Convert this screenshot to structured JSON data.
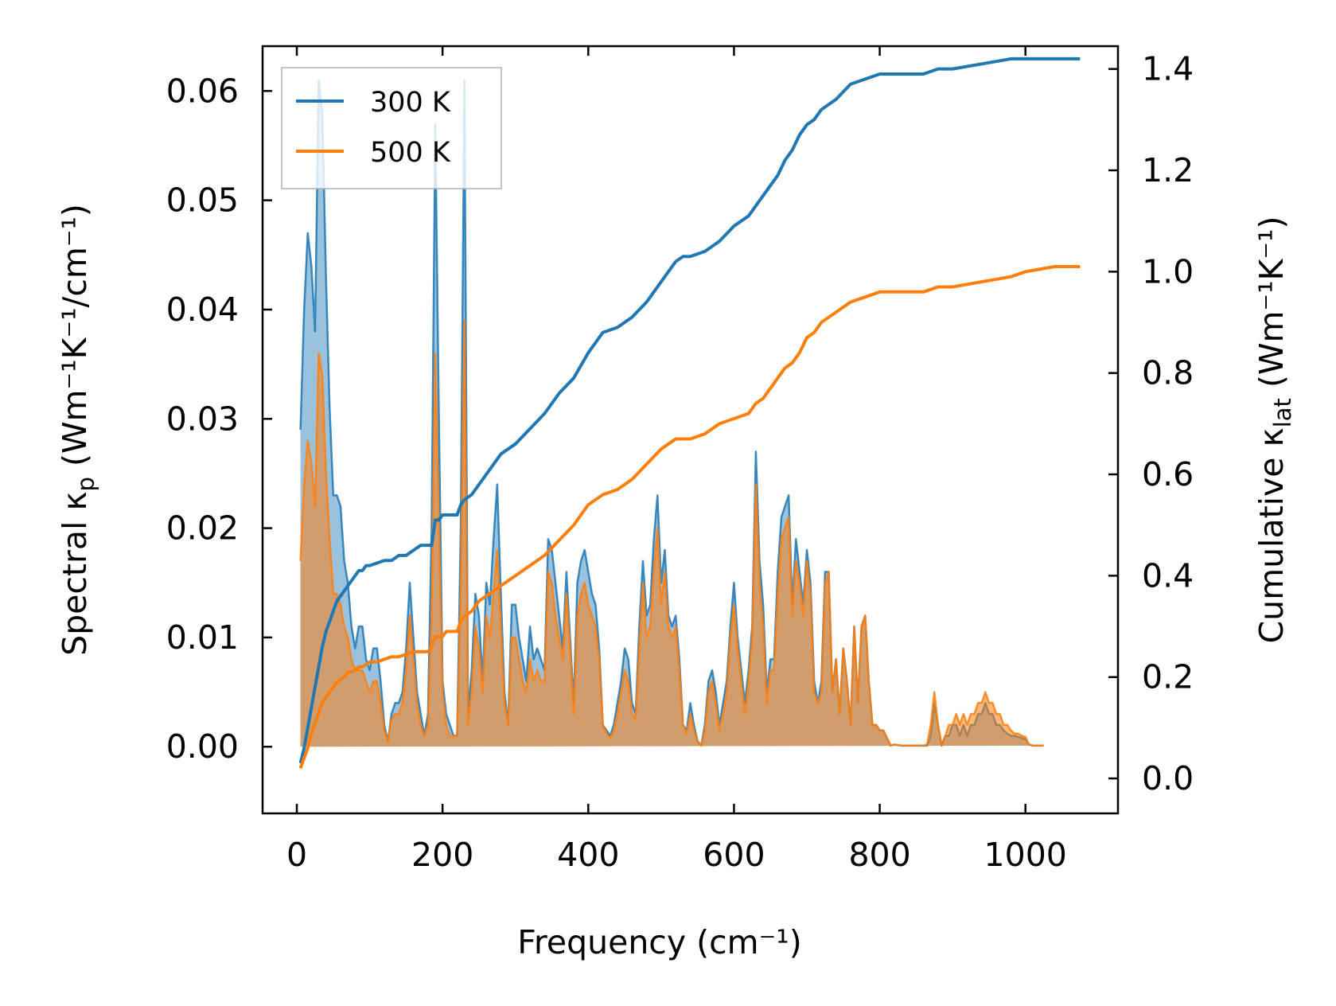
{
  "chart_data": {
    "type": "line",
    "xlabel": "Frequency (cm⁻¹)",
    "ylabel_left": {
      "base": "Spectral κ",
      "sub": "p",
      "units": " (Wm⁻¹K⁻¹/cm⁻¹)"
    },
    "ylabel_right": {
      "base": "Cumulative κ",
      "sub": "lat",
      "units": " (Wm⁻¹K⁻¹)"
    },
    "xlim": [
      -47,
      1127
    ],
    "ylim_left": [
      -0.0061,
      0.0641
    ],
    "ylim_right": [
      -0.069,
      1.445
    ],
    "x_ticks": [
      0,
      200,
      400,
      600,
      800,
      1000
    ],
    "x_tick_labels": [
      "0",
      "200",
      "400",
      "600",
      "800",
      "1000"
    ],
    "y_left_ticks": [
      0.0,
      0.01,
      0.02,
      0.03,
      0.04,
      0.05,
      0.06
    ],
    "y_left_tick_labels": [
      "0.00",
      "0.01",
      "0.02",
      "0.03",
      "0.04",
      "0.05",
      "0.06"
    ],
    "y_right_ticks": [
      0.0,
      0.2,
      0.4,
      0.6,
      0.8,
      1.0,
      1.2,
      1.4
    ],
    "y_right_tick_labels": [
      "0.0",
      "0.2",
      "0.4",
      "0.6",
      "0.8",
      "1.0",
      "1.2",
      "1.4"
    ],
    "legend": {
      "location": "upper-left",
      "entries": [
        "300 K",
        "500 K"
      ]
    },
    "colors": {
      "s300": "#1f77b4",
      "s500": "#ff7f0e"
    },
    "spectral_x": [
      5,
      10,
      15,
      20,
      25,
      30,
      35,
      40,
      45,
      50,
      55,
      60,
      65,
      70,
      75,
      80,
      85,
      90,
      95,
      100,
      105,
      110,
      115,
      120,
      125,
      130,
      135,
      140,
      145,
      150,
      155,
      160,
      165,
      170,
      175,
      180,
      185,
      190,
      195,
      200,
      205,
      210,
      215,
      220,
      225,
      230,
      235,
      240,
      245,
      250,
      255,
      260,
      265,
      270,
      275,
      280,
      285,
      290,
      295,
      300,
      305,
      310,
      315,
      320,
      325,
      330,
      335,
      340,
      345,
      350,
      355,
      360,
      365,
      370,
      375,
      380,
      385,
      390,
      395,
      400,
      405,
      410,
      415,
      420,
      425,
      430,
      435,
      440,
      445,
      450,
      455,
      460,
      465,
      470,
      475,
      480,
      485,
      490,
      495,
      500,
      505,
      510,
      515,
      520,
      525,
      530,
      535,
      540,
      545,
      550,
      555,
      560,
      565,
      570,
      575,
      580,
      585,
      590,
      595,
      600,
      605,
      610,
      615,
      620,
      625,
      630,
      635,
      640,
      645,
      650,
      655,
      660,
      665,
      670,
      675,
      680,
      685,
      690,
      695,
      700,
      705,
      710,
      715,
      720,
      725,
      730,
      735,
      740,
      745,
      750,
      755,
      760,
      765,
      770,
      775,
      780,
      785,
      790,
      795,
      800,
      805,
      810,
      815,
      820,
      830,
      840,
      850,
      860,
      865,
      870,
      875,
      880,
      885,
      890,
      895,
      900,
      905,
      910,
      915,
      920,
      925,
      930,
      935,
      940,
      945,
      950,
      955,
      960,
      965,
      970,
      975,
      980,
      985,
      990,
      995,
      1000,
      1005,
      1010,
      1015,
      1020,
      1025,
      1030,
      1040,
      1050,
      1060,
      1075
    ],
    "series": [
      {
        "name": "300 K",
        "spectral": [
          0.029,
          0.04,
          0.047,
          0.044,
          0.038,
          0.061,
          0.058,
          0.043,
          0.031,
          0.023,
          0.023,
          0.022,
          0.017,
          0.015,
          0.011,
          0.009,
          0.011,
          0.011,
          0.008,
          0.007,
          0.009,
          0.009,
          0.006,
          0.002,
          0.0005,
          0.003,
          0.004,
          0.004,
          0.005,
          0.009,
          0.015,
          0.01,
          0.005,
          0.003,
          0.001,
          0.003,
          0.02,
          0.057,
          0.03,
          0.006,
          0.003,
          0.002,
          0.001,
          0.001,
          0.02,
          0.061,
          0.003,
          0.007,
          0.014,
          0.012,
          0.006,
          0.015,
          0.013,
          0.019,
          0.024,
          0.014,
          0.005,
          0.002,
          0.013,
          0.013,
          0.01,
          0.008,
          0.006,
          0.011,
          0.008,
          0.009,
          0.008,
          0.007,
          0.019,
          0.018,
          0.015,
          0.012,
          0.009,
          0.016,
          0.01,
          0.004,
          0.015,
          0.017,
          0.018,
          0.016,
          0.014,
          0.013,
          0.009,
          0.002,
          0.0015,
          0.001,
          0.002,
          0.004,
          0.006,
          0.009,
          0.008,
          0.004,
          0.003,
          0.011,
          0.017,
          0.012,
          0.013,
          0.019,
          0.023,
          0.015,
          0.018,
          0.012,
          0.011,
          0.012,
          0.008,
          0.002,
          0.0015,
          0.004,
          0.002,
          0.0005,
          0.0001,
          0.002,
          0.006,
          0.007,
          0.005,
          0.002,
          0.004,
          0.006,
          0.011,
          0.015,
          0.01,
          0.007,
          0.004,
          0.007,
          0.011,
          0.027,
          0.017,
          0.013,
          0.005,
          0.008,
          0.008,
          0.016,
          0.021,
          0.022,
          0.023,
          0.013,
          0.019,
          0.016,
          0.013,
          0.018,
          0.015,
          0.006,
          0.004,
          0.006,
          0.016,
          0.016,
          0.005,
          0.008,
          0.003,
          0.009,
          0.006,
          0.002,
          0.011,
          0.004,
          0.011,
          0.012,
          0.006,
          0.002,
          0.002,
          0.0015,
          0.0015,
          0.0008,
          0.0001,
          0.0002,
          0.0001,
          0.0001,
          0.0001,
          0.0001,
          0.0001,
          0.001,
          0.004,
          0.002,
          0.0001,
          0.001,
          0.001,
          0.002,
          0.002,
          0.001,
          0.002,
          0.001,
          0.002,
          0.002,
          0.003,
          0.003,
          0.004,
          0.003,
          0.003,
          0.002,
          0.002,
          0.0015,
          0.0012,
          0.001,
          0.001,
          0.0009,
          0.0008,
          0.0007,
          0.0002,
          0.0001,
          0.0001,
          0.0001,
          0.0001
        ],
        "cum_x": [
          5,
          10,
          15,
          20,
          25,
          30,
          35,
          40,
          45,
          50,
          55,
          60,
          65,
          70,
          75,
          80,
          85,
          90,
          95,
          100,
          110,
          120,
          130,
          140,
          150,
          160,
          170,
          180,
          185,
          190,
          195,
          200,
          205,
          210,
          215,
          220,
          225,
          230,
          240,
          250,
          260,
          270,
          280,
          290,
          300,
          320,
          340,
          360,
          380,
          400,
          420,
          440,
          460,
          480,
          500,
          520,
          530,
          540,
          560,
          580,
          600,
          620,
          630,
          640,
          650,
          660,
          670,
          680,
          690,
          700,
          710,
          720,
          740,
          760,
          780,
          800,
          830,
          860,
          880,
          900,
          940,
          980,
          1000,
          1040,
          1075
        ],
        "cumulative": [
          0.03,
          0.06,
          0.1,
          0.14,
          0.18,
          0.22,
          0.26,
          0.29,
          0.31,
          0.33,
          0.35,
          0.36,
          0.37,
          0.38,
          0.39,
          0.4,
          0.41,
          0.41,
          0.42,
          0.42,
          0.425,
          0.43,
          0.43,
          0.44,
          0.44,
          0.45,
          0.46,
          0.46,
          0.46,
          0.51,
          0.51,
          0.52,
          0.52,
          0.52,
          0.52,
          0.52,
          0.54,
          0.55,
          0.56,
          0.58,
          0.6,
          0.62,
          0.64,
          0.65,
          0.66,
          0.69,
          0.72,
          0.76,
          0.79,
          0.84,
          0.88,
          0.89,
          0.91,
          0.94,
          0.98,
          1.02,
          1.03,
          1.03,
          1.04,
          1.06,
          1.09,
          1.11,
          1.13,
          1.15,
          1.17,
          1.19,
          1.22,
          1.24,
          1.27,
          1.29,
          1.3,
          1.32,
          1.34,
          1.37,
          1.38,
          1.39,
          1.39,
          1.39,
          1.4,
          1.4,
          1.41,
          1.42,
          1.42,
          1.42,
          1.42
        ]
      },
      {
        "name": "500 K",
        "spectral": [
          0.017,
          0.024,
          0.028,
          0.026,
          0.022,
          0.036,
          0.034,
          0.025,
          0.019,
          0.014,
          0.014,
          0.013,
          0.011,
          0.01,
          0.008,
          0.007,
          0.007,
          0.007,
          0.006,
          0.005,
          0.006,
          0.006,
          0.004,
          0.0015,
          0.0005,
          0.0025,
          0.003,
          0.003,
          0.004,
          0.007,
          0.012,
          0.008,
          0.004,
          0.002,
          0.001,
          0.002,
          0.012,
          0.036,
          0.02,
          0.005,
          0.002,
          0.001,
          0.001,
          0.001,
          0.014,
          0.039,
          0.002,
          0.005,
          0.011,
          0.009,
          0.005,
          0.012,
          0.01,
          0.014,
          0.018,
          0.011,
          0.004,
          0.002,
          0.01,
          0.01,
          0.008,
          0.006,
          0.005,
          0.008,
          0.006,
          0.007,
          0.006,
          0.006,
          0.016,
          0.015,
          0.012,
          0.01,
          0.008,
          0.014,
          0.009,
          0.003,
          0.012,
          0.014,
          0.015,
          0.013,
          0.012,
          0.011,
          0.008,
          0.002,
          0.0012,
          0.0008,
          0.0015,
          0.003,
          0.005,
          0.007,
          0.006,
          0.003,
          0.0025,
          0.009,
          0.015,
          0.01,
          0.011,
          0.016,
          0.02,
          0.013,
          0.016,
          0.011,
          0.01,
          0.011,
          0.007,
          0.002,
          0.0012,
          0.003,
          0.0015,
          0.0004,
          0.0001,
          0.0015,
          0.005,
          0.006,
          0.004,
          0.0015,
          0.003,
          0.005,
          0.01,
          0.013,
          0.009,
          0.006,
          0.003,
          0.006,
          0.01,
          0.024,
          0.015,
          0.011,
          0.004,
          0.007,
          0.007,
          0.014,
          0.019,
          0.02,
          0.021,
          0.012,
          0.017,
          0.015,
          0.012,
          0.017,
          0.014,
          0.005,
          0.004,
          0.005,
          0.015,
          0.016,
          0.005,
          0.008,
          0.003,
          0.009,
          0.006,
          0.002,
          0.011,
          0.004,
          0.011,
          0.012,
          0.006,
          0.002,
          0.002,
          0.0015,
          0.0015,
          0.0008,
          0.0001,
          0.0002,
          0.0001,
          0.0001,
          0.0001,
          0.0001,
          0.0002,
          0.002,
          0.005,
          0.002,
          0.0002,
          0.001,
          0.002,
          0.002,
          0.003,
          0.002,
          0.003,
          0.002,
          0.003,
          0.003,
          0.004,
          0.004,
          0.005,
          0.004,
          0.004,
          0.003,
          0.003,
          0.002,
          0.002,
          0.0015,
          0.0012,
          0.0012,
          0.001,
          0.0009,
          0.0002,
          0.0001,
          0.0001,
          0.0001,
          0.0001
        ],
        "cum_x": [
          5,
          10,
          15,
          20,
          25,
          30,
          35,
          40,
          45,
          50,
          55,
          60,
          65,
          70,
          75,
          80,
          85,
          90,
          95,
          100,
          110,
          120,
          130,
          140,
          150,
          160,
          170,
          180,
          185,
          190,
          195,
          200,
          205,
          210,
          215,
          220,
          225,
          230,
          240,
          250,
          260,
          270,
          280,
          290,
          300,
          320,
          340,
          360,
          380,
          400,
          420,
          440,
          460,
          480,
          500,
          520,
          530,
          540,
          560,
          580,
          600,
          620,
          630,
          640,
          650,
          660,
          670,
          680,
          690,
          700,
          710,
          720,
          740,
          760,
          780,
          800,
          830,
          860,
          880,
          900,
          940,
          980,
          1000,
          1040,
          1075
        ],
        "cumulative": [
          0.02,
          0.04,
          0.06,
          0.09,
          0.11,
          0.13,
          0.15,
          0.16,
          0.17,
          0.18,
          0.19,
          0.195,
          0.2,
          0.21,
          0.21,
          0.215,
          0.22,
          0.22,
          0.225,
          0.23,
          0.23,
          0.235,
          0.24,
          0.24,
          0.245,
          0.25,
          0.25,
          0.25,
          0.26,
          0.28,
          0.28,
          0.28,
          0.29,
          0.29,
          0.29,
          0.29,
          0.31,
          0.32,
          0.33,
          0.35,
          0.36,
          0.37,
          0.38,
          0.39,
          0.4,
          0.42,
          0.44,
          0.47,
          0.5,
          0.54,
          0.56,
          0.57,
          0.59,
          0.62,
          0.65,
          0.67,
          0.67,
          0.67,
          0.68,
          0.7,
          0.71,
          0.72,
          0.74,
          0.75,
          0.77,
          0.79,
          0.81,
          0.82,
          0.84,
          0.87,
          0.88,
          0.9,
          0.92,
          0.94,
          0.95,
          0.96,
          0.96,
          0.96,
          0.97,
          0.97,
          0.98,
          0.99,
          1.0,
          1.01,
          1.01
        ]
      }
    ]
  }
}
